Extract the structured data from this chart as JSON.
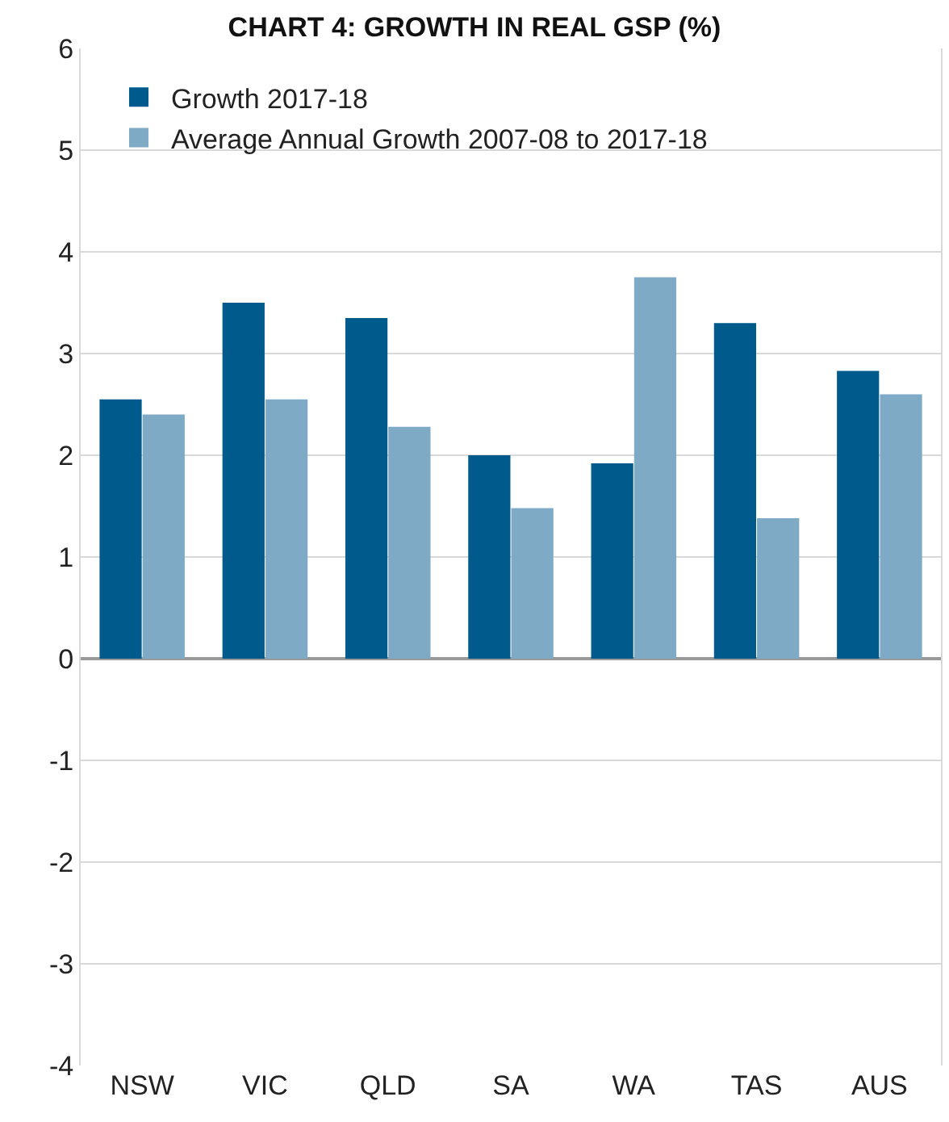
{
  "chart_data": {
    "type": "bar",
    "title": "CHART 4: GROWTH IN REAL GSP (%)",
    "categories": [
      "NSW",
      "VIC",
      "QLD",
      "SA",
      "WA",
      "TAS",
      "AUS"
    ],
    "series": [
      {
        "name": "Growth 2017-18",
        "color": "#005a8c",
        "values": [
          2.55,
          3.5,
          3.35,
          2.0,
          1.92,
          3.3,
          2.83
        ]
      },
      {
        "name": "Average Annual Growth 2007-08 to 2017-18",
        "color": "#7eaac6",
        "values": [
          2.4,
          2.55,
          2.28,
          1.48,
          3.75,
          1.38,
          2.6
        ]
      }
    ],
    "ylim": [
      -4,
      6
    ],
    "yticks": [
      -4,
      -3,
      -2,
      -1,
      0,
      1,
      2,
      3,
      4,
      5,
      6
    ],
    "grid": "y",
    "legend": "top left"
  }
}
